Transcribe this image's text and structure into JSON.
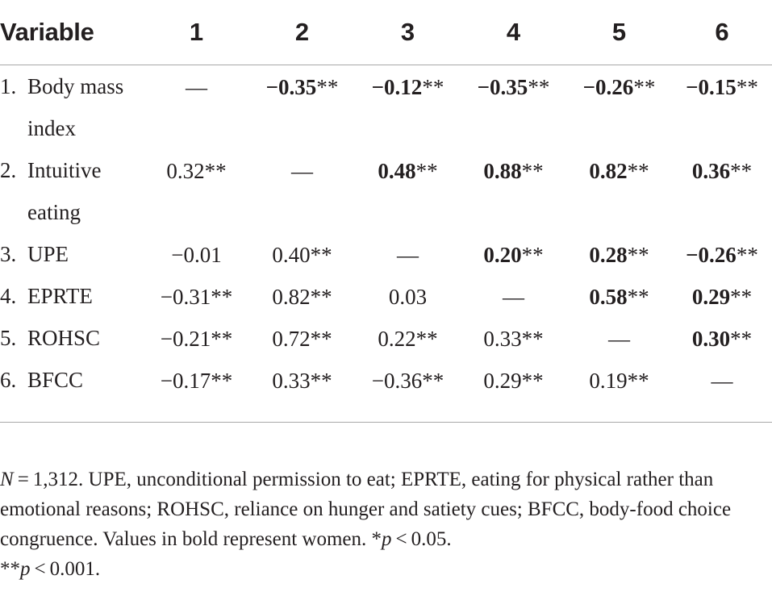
{
  "header": {
    "variable": "Variable",
    "cols": [
      "1",
      "2",
      "3",
      "4",
      "5",
      "6"
    ]
  },
  "rows": [
    {
      "num": "1.",
      "name": "Body mass index",
      "cells": [
        {
          "v": "—",
          "s": "",
          "b": false
        },
        {
          "v": "−0.35",
          "s": "**",
          "b": true
        },
        {
          "v": "−0.12",
          "s": "**",
          "b": true
        },
        {
          "v": "−0.35",
          "s": "**",
          "b": true
        },
        {
          "v": "−0.26",
          "s": "**",
          "b": true
        },
        {
          "v": "−0.15",
          "s": "**",
          "b": true
        }
      ]
    },
    {
      "num": "2.",
      "name": "Intuitive eating",
      "cells": [
        {
          "v": "0.32",
          "s": "**",
          "b": false
        },
        {
          "v": "—",
          "s": "",
          "b": false
        },
        {
          "v": "0.48",
          "s": "**",
          "b": true
        },
        {
          "v": "0.88",
          "s": "**",
          "b": true
        },
        {
          "v": "0.82",
          "s": "**",
          "b": true
        },
        {
          "v": "0.36",
          "s": "**",
          "b": true
        }
      ]
    },
    {
      "num": "3.",
      "name": "UPE",
      "cells": [
        {
          "v": "−0.01",
          "s": "",
          "b": false
        },
        {
          "v": "0.40",
          "s": "**",
          "b": false
        },
        {
          "v": "—",
          "s": "",
          "b": false
        },
        {
          "v": "0.20",
          "s": "**",
          "b": true
        },
        {
          "v": "0.28",
          "s": "**",
          "b": true
        },
        {
          "v": "−0.26",
          "s": "**",
          "b": true
        }
      ]
    },
    {
      "num": "4.",
      "name": "EPRTE",
      "cells": [
        {
          "v": "−0.31",
          "s": "**",
          "b": false
        },
        {
          "v": "0.82",
          "s": "**",
          "b": false
        },
        {
          "v": "0.03",
          "s": "",
          "b": false
        },
        {
          "v": "—",
          "s": "",
          "b": false
        },
        {
          "v": "0.58",
          "s": "**",
          "b": true
        },
        {
          "v": "0.29",
          "s": "**",
          "b": true
        }
      ]
    },
    {
      "num": "5.",
      "name": "ROHSC",
      "cells": [
        {
          "v": "−0.21",
          "s": "**",
          "b": false
        },
        {
          "v": "0.72",
          "s": "**",
          "b": false
        },
        {
          "v": "0.22",
          "s": "**",
          "b": false
        },
        {
          "v": "0.33",
          "s": "**",
          "b": false
        },
        {
          "v": "—",
          "s": "",
          "b": false
        },
        {
          "v": "0.30",
          "s": "**",
          "b": true
        }
      ]
    },
    {
      "num": "6.",
      "name": "BFCC",
      "cells": [
        {
          "v": "−0.17",
          "s": "**",
          "b": false
        },
        {
          "v": "0.33",
          "s": "**",
          "b": false
        },
        {
          "v": "−0.36",
          "s": "**",
          "b": false
        },
        {
          "v": "0.29",
          "s": "**",
          "b": false
        },
        {
          "v": "0.19",
          "s": "**",
          "b": false
        },
        {
          "v": "—",
          "s": "",
          "b": false
        }
      ]
    }
  ],
  "note": {
    "n_label": "N",
    "line1_rest": " = 1,312. UPE, unconditional permission to eat; EPRTE, eating for physical rather than emotional reasons; ROHSC, reliance on hunger and satiety cues; BFCC, body-food choice congruence. Values in bold represent women. *",
    "p_label": "p",
    "p05": " < 0.05.",
    "line2_prefix": "**",
    "p001": " < 0.001."
  }
}
